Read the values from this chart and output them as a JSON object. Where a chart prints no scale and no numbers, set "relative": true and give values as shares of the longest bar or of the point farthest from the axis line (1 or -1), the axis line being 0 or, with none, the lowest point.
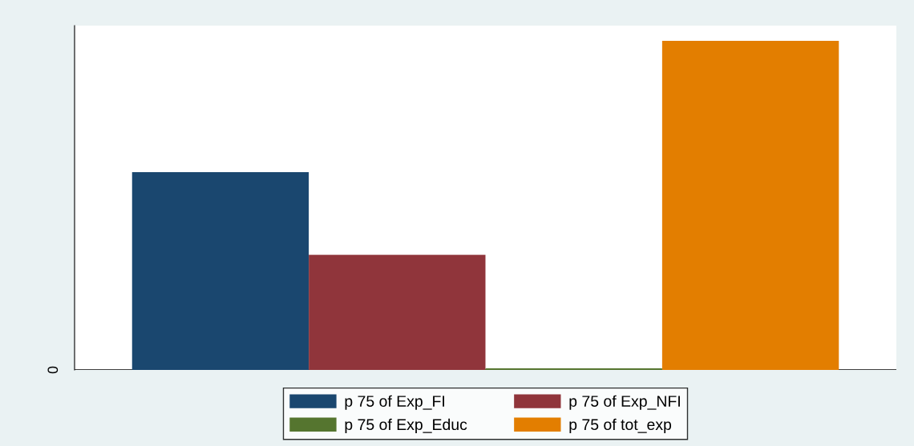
{
  "chart_data": {
    "type": "bar",
    "relative": true,
    "categories": [
      null
    ],
    "series": [
      {
        "name": "p 75 of Exp_FI",
        "color": "#1a476f",
        "values": [
          0.601
        ]
      },
      {
        "name": "p 75 of Exp_NFI",
        "color": "#90353b",
        "values": [
          0.35
        ]
      },
      {
        "name": "p 75 of Exp_Educ",
        "color": "#55752f",
        "values": [
          0.005
        ]
      },
      {
        "name": "p 75 of tot_exp",
        "color": "#e37e00",
        "values": [
          1
        ]
      }
    ],
    "ref_lines": [
      {
        "axis": "y",
        "value": 0,
        "label": "0",
        "color": "#000000"
      }
    ],
    "legend": "bottom"
  }
}
